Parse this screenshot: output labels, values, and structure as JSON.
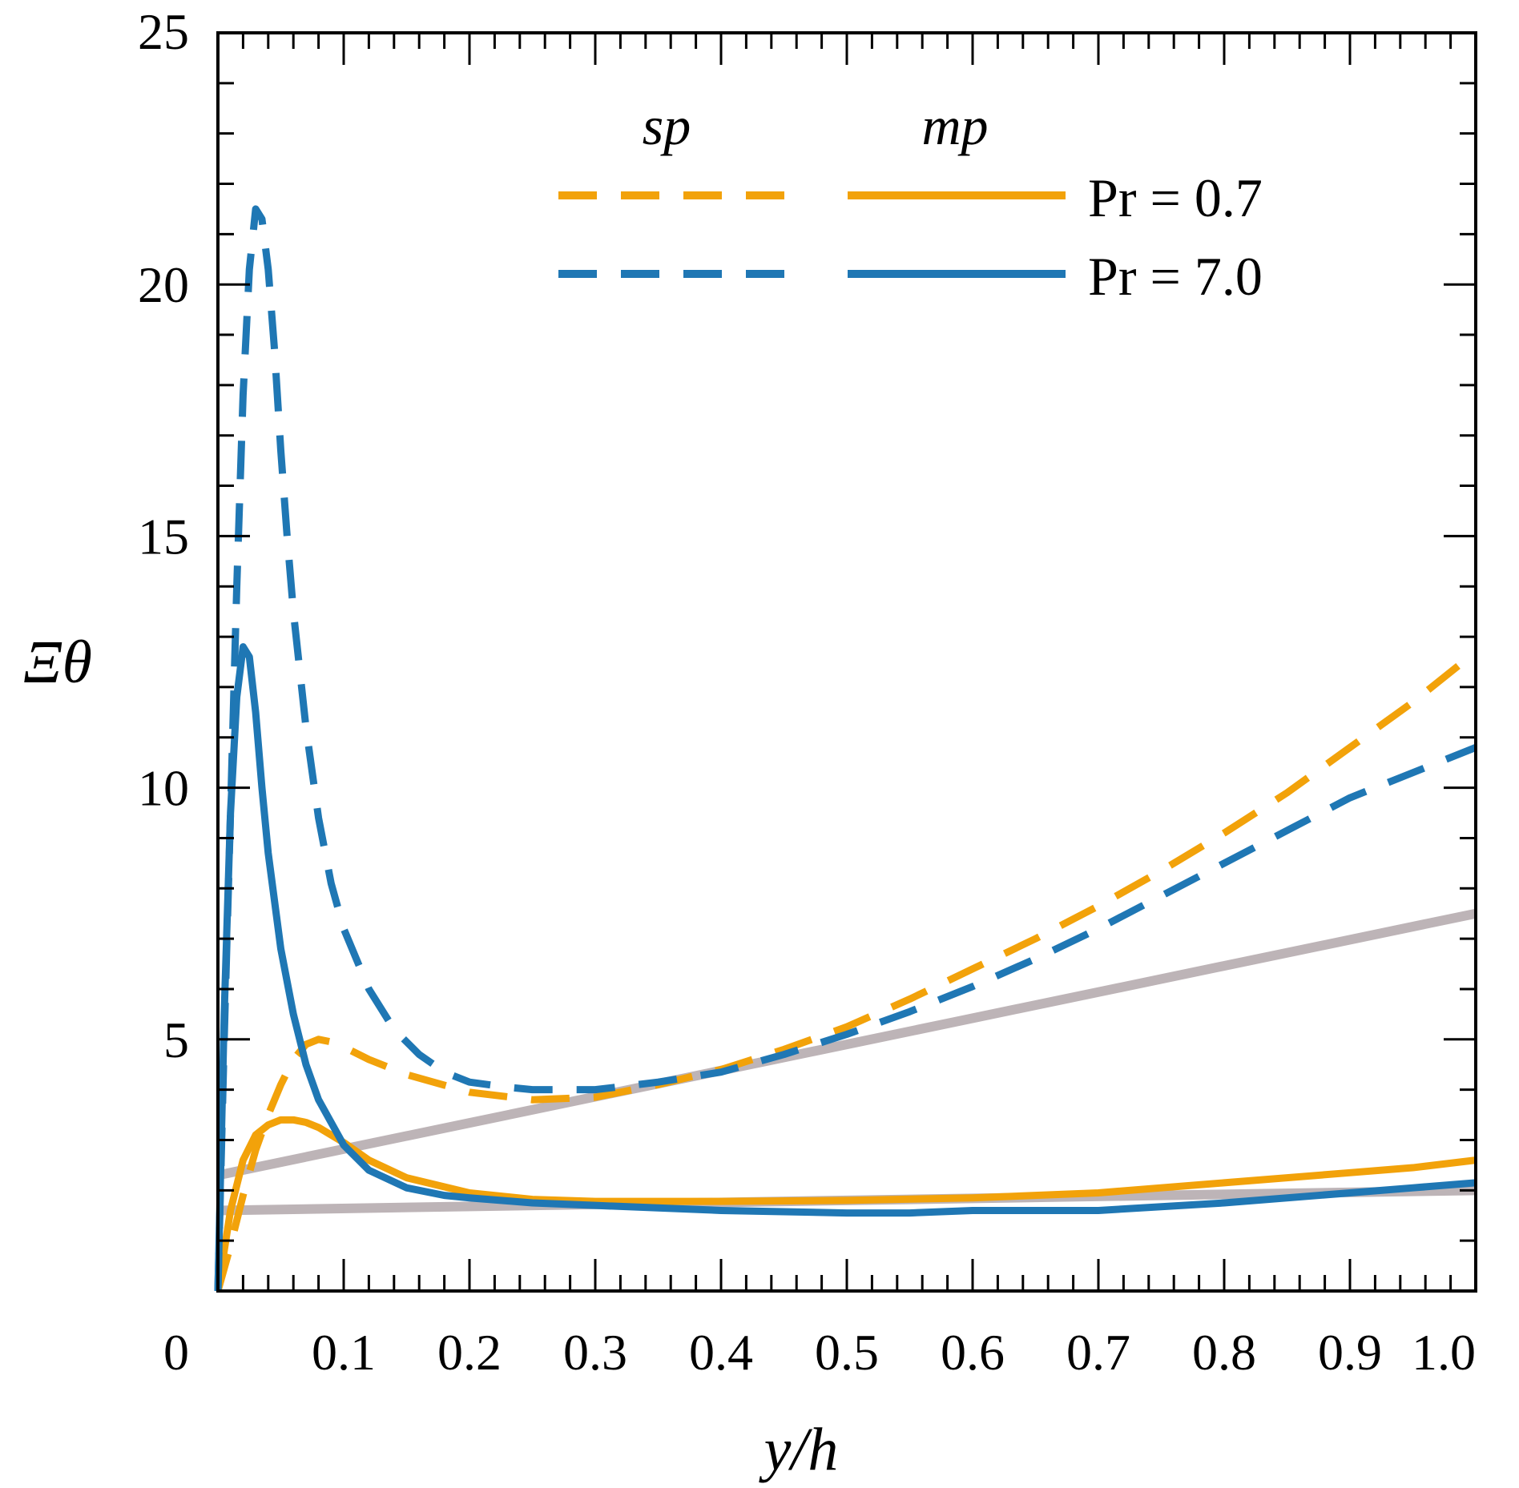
{
  "chart_data": {
    "type": "line",
    "xlabel": "y/h",
    "ylabel": "Ξθ",
    "xlim": [
      0,
      1.0
    ],
    "ylim": [
      0,
      25
    ],
    "x_ticks": [
      "0",
      "0.1",
      "0.2",
      "0.3",
      "0.4",
      "0.5",
      "0.6",
      "0.7",
      "0.8",
      "0.9",
      "1.0"
    ],
    "y_ticks": [
      "5",
      "10",
      "15",
      "20",
      "25"
    ],
    "grid": false,
    "legend": {
      "placement": "top-right",
      "column_headers": [
        "sp",
        "mp"
      ],
      "rows": [
        "Pr = 0.7",
        "Pr = 7.0"
      ]
    },
    "colors": {
      "pr07": "#F2A20A",
      "pr70": "#1F77B4",
      "reference": "#BDB4B7"
    },
    "series": [
      {
        "group": "sp",
        "row": "Pr = 0.7",
        "style": "dashed",
        "color": "#F2A20A",
        "x": [
          0.0,
          0.01,
          0.02,
          0.03,
          0.04,
          0.05,
          0.06,
          0.07,
          0.08,
          0.09,
          0.1,
          0.12,
          0.15,
          0.2,
          0.25,
          0.3,
          0.35,
          0.4,
          0.45,
          0.5,
          0.55,
          0.6,
          0.65,
          0.7,
          0.75,
          0.8,
          0.85,
          0.9,
          0.95,
          1.0
        ],
        "y": [
          0.0,
          0.9,
          1.9,
          2.8,
          3.5,
          4.1,
          4.6,
          4.9,
          5.0,
          4.95,
          4.85,
          4.6,
          4.3,
          3.95,
          3.8,
          3.85,
          4.1,
          4.4,
          4.8,
          5.25,
          5.8,
          6.4,
          7.0,
          7.65,
          8.35,
          9.1,
          9.9,
          10.8,
          11.7,
          12.7
        ]
      },
      {
        "group": "mp",
        "row": "Pr = 0.7",
        "style": "solid",
        "color": "#F2A20A",
        "x": [
          0.0,
          0.005,
          0.01,
          0.02,
          0.03,
          0.04,
          0.05,
          0.06,
          0.07,
          0.08,
          0.1,
          0.12,
          0.15,
          0.2,
          0.25,
          0.3,
          0.4,
          0.5,
          0.6,
          0.7,
          0.8,
          0.9,
          0.95,
          1.0
        ],
        "y": [
          0.0,
          0.8,
          1.6,
          2.6,
          3.1,
          3.3,
          3.4,
          3.4,
          3.35,
          3.25,
          2.95,
          2.6,
          2.25,
          1.95,
          1.82,
          1.78,
          1.78,
          1.8,
          1.85,
          1.95,
          2.15,
          2.35,
          2.45,
          2.6
        ]
      },
      {
        "group": "sp",
        "row": "Pr = 7.0",
        "style": "dashed",
        "color": "#1F77B4",
        "x": [
          0.0,
          0.005,
          0.01,
          0.015,
          0.02,
          0.025,
          0.03,
          0.035,
          0.04,
          0.045,
          0.05,
          0.055,
          0.06,
          0.07,
          0.08,
          0.09,
          0.1,
          0.12,
          0.14,
          0.16,
          0.18,
          0.2,
          0.23,
          0.25,
          0.28,
          0.3,
          0.35,
          0.4,
          0.45,
          0.5,
          0.55,
          0.6,
          0.65,
          0.7,
          0.75,
          0.8,
          0.85,
          0.9,
          0.95,
          1.0
        ],
        "y": [
          0.0,
          5.0,
          9.5,
          14.0,
          17.8,
          20.3,
          21.5,
          21.3,
          20.3,
          18.7,
          16.7,
          15.0,
          13.5,
          11.2,
          9.4,
          8.1,
          7.2,
          6.0,
          5.2,
          4.7,
          4.35,
          4.15,
          4.05,
          4.0,
          4.0,
          4.0,
          4.15,
          4.35,
          4.7,
          5.1,
          5.55,
          6.05,
          6.6,
          7.2,
          7.85,
          8.5,
          9.15,
          9.8,
          10.3,
          10.8
        ]
      },
      {
        "group": "mp",
        "row": "Pr = 7.0",
        "style": "solid",
        "color": "#1F77B4",
        "x": [
          0.0,
          0.005,
          0.01,
          0.015,
          0.02,
          0.025,
          0.03,
          0.035,
          0.04,
          0.05,
          0.06,
          0.07,
          0.08,
          0.1,
          0.12,
          0.15,
          0.18,
          0.2,
          0.25,
          0.3,
          0.4,
          0.5,
          0.55,
          0.6,
          0.7,
          0.8,
          0.9,
          0.95,
          1.0
        ],
        "y": [
          0.0,
          5.5,
          9.5,
          11.8,
          12.8,
          12.6,
          11.5,
          10.0,
          8.7,
          6.8,
          5.5,
          4.5,
          3.8,
          2.9,
          2.4,
          2.05,
          1.9,
          1.85,
          1.75,
          1.7,
          1.6,
          1.55,
          1.55,
          1.6,
          1.6,
          1.75,
          1.95,
          2.05,
          2.15
        ]
      },
      {
        "group": "reference",
        "style": "solid",
        "color": "#BDB4B7",
        "x": [
          0.0,
          1.0
        ],
        "y": [
          2.3,
          7.5
        ]
      },
      {
        "group": "reference",
        "style": "solid",
        "color": "#BDB4B7",
        "x": [
          0.0,
          1.0
        ],
        "y": [
          1.6,
          2.0
        ]
      }
    ]
  }
}
